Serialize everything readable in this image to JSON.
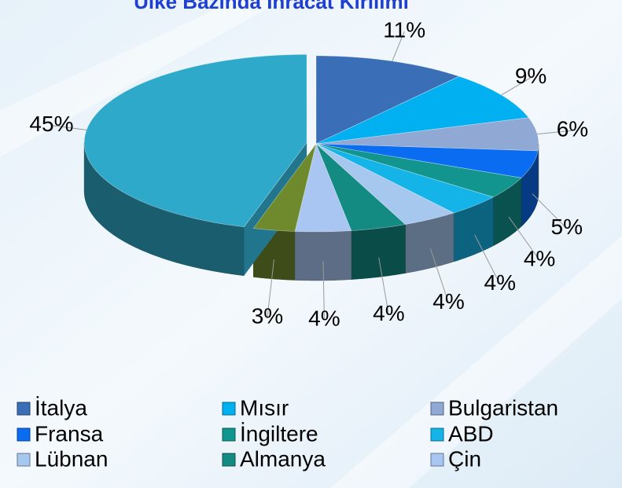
{
  "chart_data": {
    "type": "pie3d",
    "title": "Ülke Bazında İhracat Kırılımı",
    "categories": [
      "İtalya",
      "Mısır",
      "Bulgaristan",
      "Fransa",
      "İngiltere",
      "ABD",
      "Lübnan",
      "Almanya",
      "Çin",
      null,
      null
    ],
    "values": [
      11,
      9,
      6,
      5,
      4,
      4,
      4,
      4,
      4,
      3,
      45
    ],
    "value_labels": [
      "11%",
      "9%",
      "6%",
      "5%",
      "4%",
      "4%",
      "4%",
      "4%",
      "4%",
      "3%",
      "45%"
    ],
    "colors": [
      "#3a6fb8",
      "#00b0f0",
      "#8fa8d4",
      "#0a6cf0",
      "#13958f",
      "#14b4e8",
      "#a6c8ee",
      "#138a82",
      "#a9c6f2",
      "#6e8a2c",
      "#2fa9c9"
    ],
    "legend": "bottom"
  }
}
